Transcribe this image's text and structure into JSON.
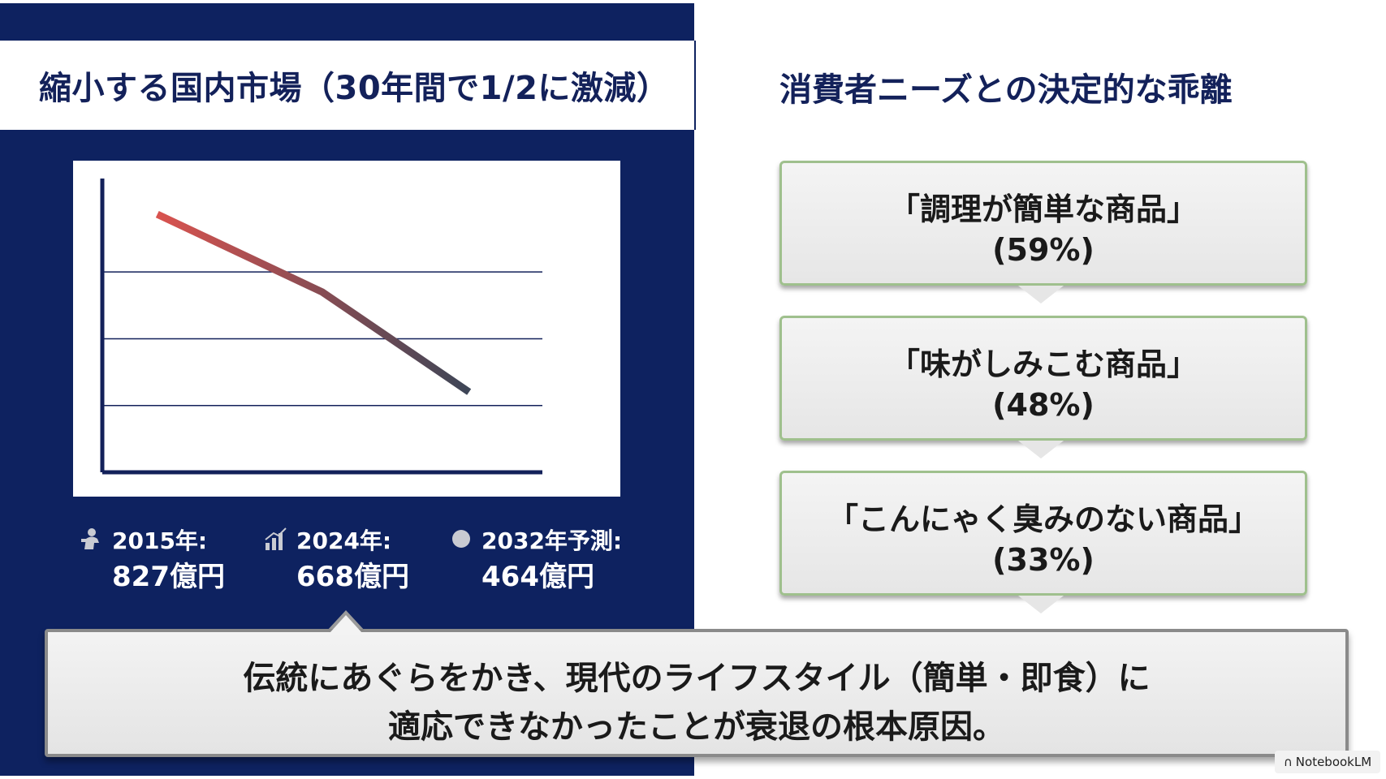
{
  "left": {
    "title": "縮小する国内市場（30年間で1/2に激減）",
    "stats": [
      {
        "icon": "person-icon",
        "year": "2015年:",
        "value": "827億円"
      },
      {
        "icon": "bar-chart-icon",
        "year": "2024年:",
        "value": "668億円"
      },
      {
        "icon": "circle-icon",
        "year": "2032年予測:",
        "value": "464億円"
      }
    ]
  },
  "chart_data": {
    "type": "line",
    "x": [
      2015,
      2024,
      2032
    ],
    "series": [
      {
        "values": [
          827,
          668,
          464
        ]
      }
    ],
    "title": "",
    "xlabel": "",
    "ylabel": "",
    "grid": true,
    "line_colors": [
      "#d9534f",
      "#3d4657"
    ]
  },
  "right": {
    "title": "消費者ニーズとの決定的な乖離",
    "needs": [
      {
        "label": "「調理が簡単な商品」",
        "pct": "(59%)"
      },
      {
        "label": "「味がしみこむ商品」",
        "pct": "(48%)"
      },
      {
        "label": "「こんにゃく臭みのない商品」",
        "pct": "(33%)"
      }
    ]
  },
  "conclusion": {
    "line1": "伝統にあぐらをかき、現代のライフスタイル（簡単・即食）に",
    "line2": "適応できなかったことが衰退の根本原因。"
  },
  "watermark": "NotebookLM",
  "colors": {
    "navy": "#0e2260",
    "green_border": "#9fc08d"
  }
}
